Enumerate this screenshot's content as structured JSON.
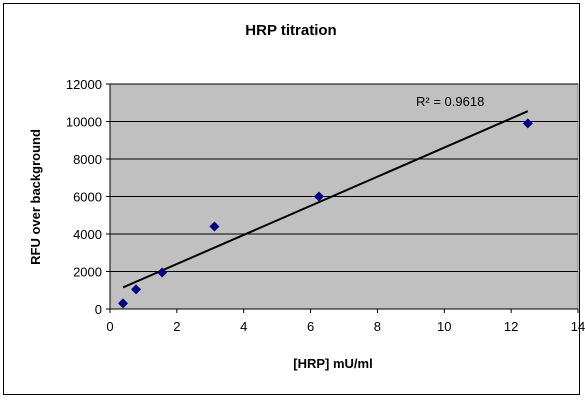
{
  "chart_data": {
    "type": "scatter",
    "title": "HRP titration",
    "xlabel": "[HRP] mU/ml",
    "ylabel": "RFU over background",
    "xlim": [
      0,
      14
    ],
    "ylim": [
      0,
      12000
    ],
    "xticks": [
      0,
      2,
      4,
      6,
      8,
      10,
      12,
      14
    ],
    "yticks": [
      0,
      2000,
      4000,
      6000,
      8000,
      10000,
      12000
    ],
    "xtick_labels": [
      "0",
      "2",
      "4",
      "6",
      "8",
      "10",
      "12",
      "14"
    ],
    "ytick_labels": [
      "0",
      "2000",
      "4000",
      "6000",
      "8000",
      "10000",
      "12000"
    ],
    "grid": "horizontal",
    "plot_background": "#c0c0c0",
    "marker_color": "#000080",
    "marker": "diamond",
    "points": [
      {
        "x": 0.39,
        "y": 300
      },
      {
        "x": 0.78,
        "y": 1050
      },
      {
        "x": 1.56,
        "y": 1950
      },
      {
        "x": 3.125,
        "y": 4400
      },
      {
        "x": 6.25,
        "y": 6000
      },
      {
        "x": 12.5,
        "y": 9900
      }
    ],
    "trendline": {
      "type": "linear",
      "x_start": 0.39,
      "x_end": 12.5,
      "y_start": 1150,
      "y_end": 10550,
      "label": "R² = 0.9618"
    }
  }
}
